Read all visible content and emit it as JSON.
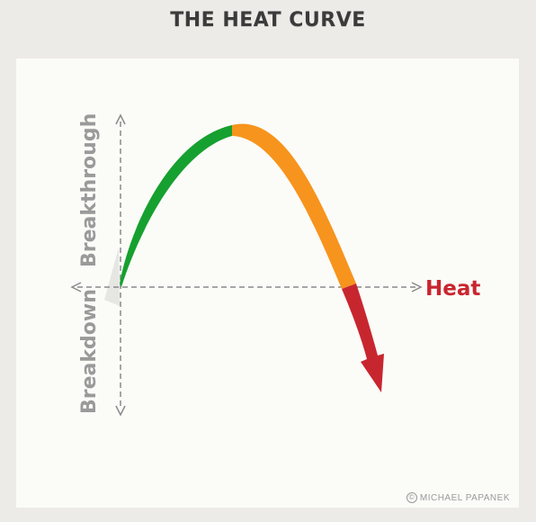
{
  "title": "THE HEAT CURVE",
  "axes": {
    "x_label": "Heat",
    "y_positive_label": "Breakthrough",
    "y_negative_label": "Breakdown"
  },
  "curve_segments": [
    {
      "name": "rising",
      "color": "#16a02f"
    },
    {
      "name": "falling",
      "color": "#f7941d"
    },
    {
      "name": "collapse",
      "color": "#c8262f"
    }
  ],
  "colors": {
    "heat_label": "#c8262f",
    "axis": "#8a8a8a",
    "axis_label": "#9a9a9a"
  },
  "credit": {
    "icon": "copyright-icon",
    "text": "MICHAEL PAPANEK"
  }
}
